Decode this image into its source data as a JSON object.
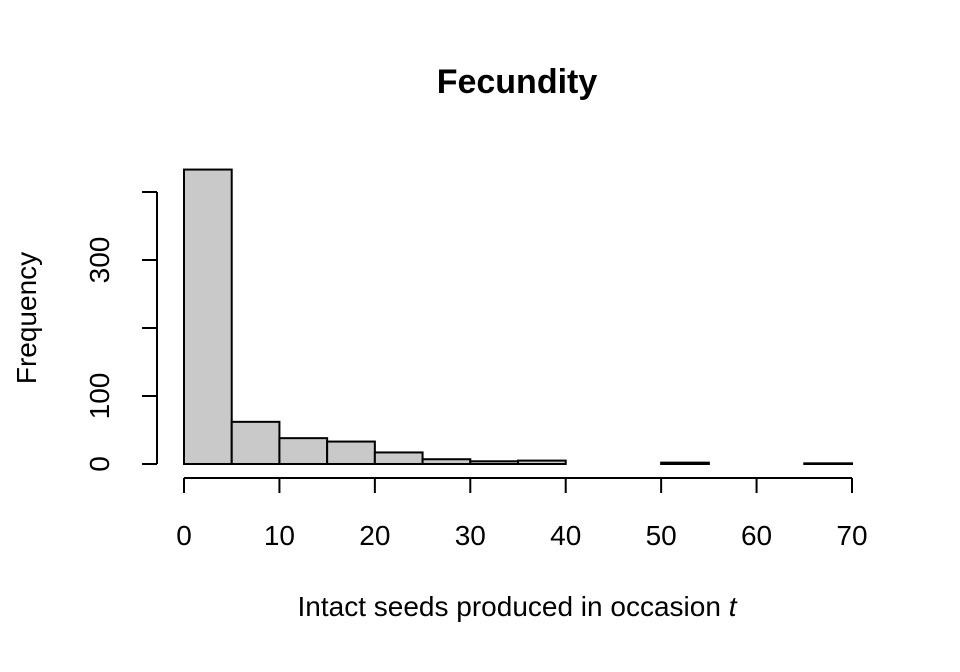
{
  "chart_data": {
    "type": "histogram",
    "title": "Fecundity",
    "xlabel": "Intact seeds produced in occasion",
    "xlabel_italic_suffix": "t",
    "ylabel": "Frequency",
    "bin_width": 5,
    "bins": [
      {
        "start": 0,
        "end": 5,
        "count": 433
      },
      {
        "start": 5,
        "end": 10,
        "count": 62
      },
      {
        "start": 10,
        "end": 15,
        "count": 38
      },
      {
        "start": 15,
        "end": 20,
        "count": 33
      },
      {
        "start": 20,
        "end": 25,
        "count": 17
      },
      {
        "start": 25,
        "end": 30,
        "count": 7
      },
      {
        "start": 30,
        "end": 35,
        "count": 4
      },
      {
        "start": 35,
        "end": 40,
        "count": 5
      },
      {
        "start": 40,
        "end": 45,
        "count": 0
      },
      {
        "start": 45,
        "end": 50,
        "count": 0
      },
      {
        "start": 50,
        "end": 55,
        "count": 2
      },
      {
        "start": 55,
        "end": 60,
        "count": 0
      },
      {
        "start": 60,
        "end": 65,
        "count": 0
      },
      {
        "start": 65,
        "end": 70,
        "count": 1
      }
    ],
    "xlim": [
      0,
      70
    ],
    "ylim": [
      0,
      400
    ],
    "x_ticks": [
      0,
      10,
      20,
      30,
      40,
      50,
      60,
      70
    ],
    "y_ticks": [
      0,
      100,
      200,
      300,
      400
    ],
    "y_tick_labels": [
      "0",
      "100",
      "",
      "300",
      ""
    ],
    "bar_fill": "#c9c9c9",
    "bar_stroke": "#000000",
    "grid": false,
    "legend": "none"
  }
}
